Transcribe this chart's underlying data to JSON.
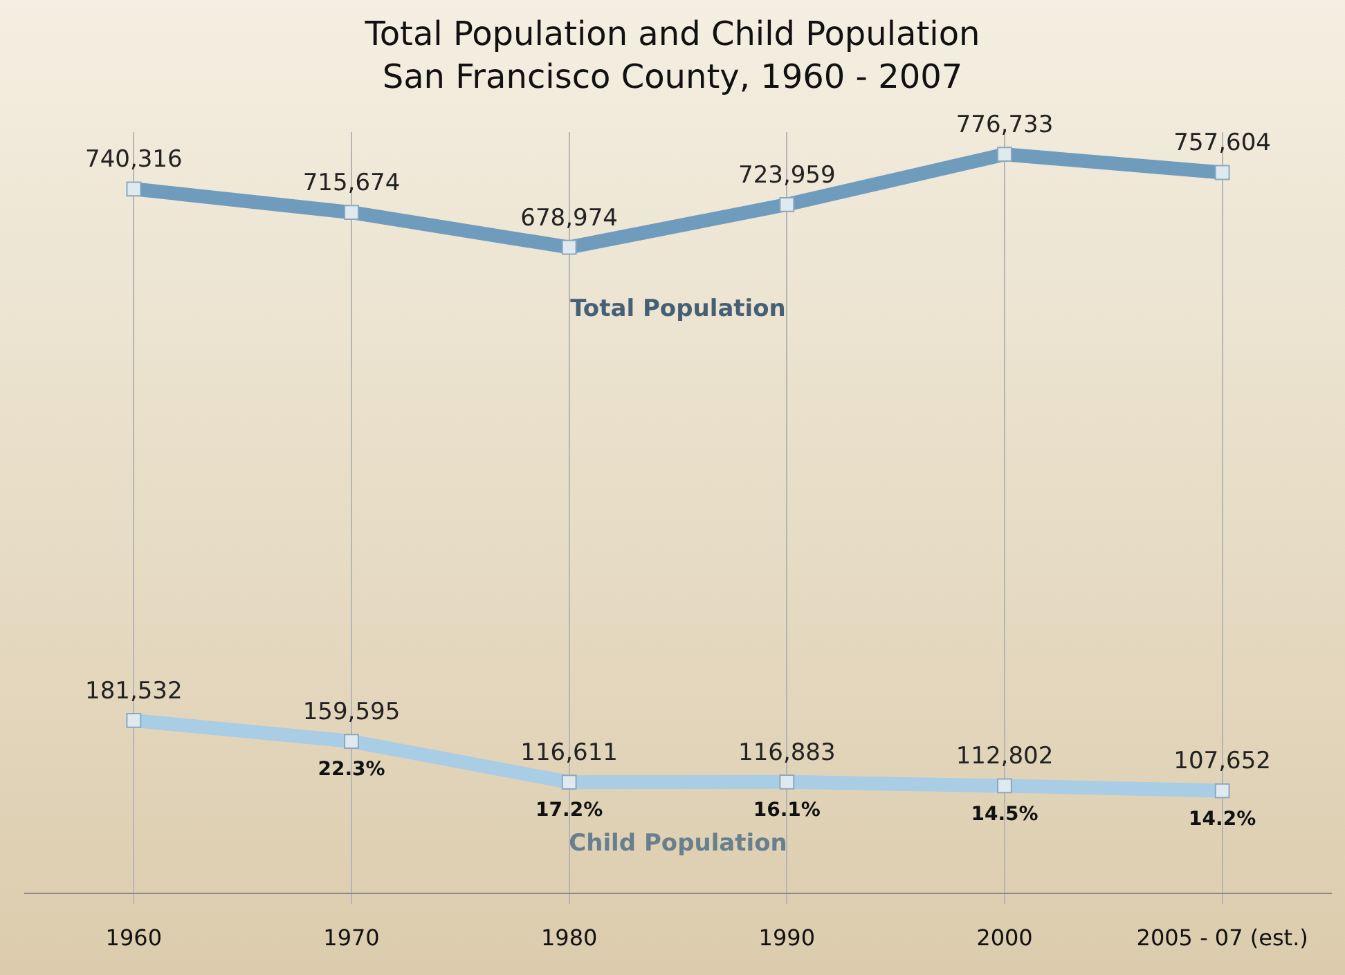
{
  "chart_data": {
    "type": "line",
    "title": "Total Population and Child Population",
    "subtitle": "San Francisco County, 1960 - 2007",
    "categories": [
      "1960",
      "1970",
      "1980",
      "1990",
      "2000",
      "2005 - 07 (est.)"
    ],
    "series": [
      {
        "name": "Total Population",
        "color": "#6f9bbd",
        "values": [
          740316,
          715674,
          678974,
          723959,
          776733,
          757604
        ],
        "value_labels": [
          "740,316",
          "715,674",
          "678,974",
          "723,959",
          "776,733",
          "757,604"
        ]
      },
      {
        "name": "Child Population",
        "color": "#a8cde4",
        "values": [
          181532,
          159595,
          116611,
          116883,
          112802,
          107652
        ],
        "value_labels": [
          "181,532",
          "159,595",
          "116,611",
          "116,883",
          "112,802",
          "107,652"
        ]
      }
    ],
    "annotations": [
      {
        "text": "22.3%",
        "x": "1970",
        "y": 159595
      },
      {
        "text": "17.2%",
        "x": "1980",
        "y": 116611
      },
      {
        "text": "16.1%",
        "x": "1990",
        "y": 116883
      },
      {
        "text": "14.5%",
        "x": "2000",
        "y": 112802
      },
      {
        "text": "14.2%",
        "x": "2005 - 07 (est.)",
        "y": 107652
      }
    ],
    "tick_labels": "x",
    "grid": "x",
    "legend": false,
    "marker": "square",
    "line_style": "solid"
  }
}
